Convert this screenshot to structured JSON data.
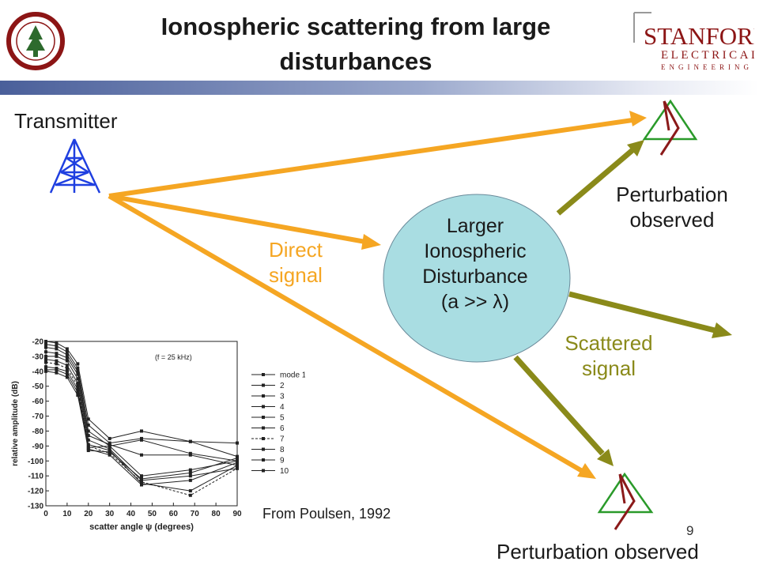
{
  "title": {
    "line1": "Ionospheric scattering from large",
    "line2": "disturbances"
  },
  "logo_right": {
    "word1": "STANFORD",
    "word2": "ELECTRICAL",
    "word3": "ENGINEERING"
  },
  "labels": {
    "transmitter": "Transmitter",
    "perturbation_top_line1": "Perturbation",
    "perturbation_top_line2": "observed",
    "perturbation_bottom": "Perturbation observed",
    "direct_line1": "Direct",
    "direct_line2": "signal",
    "scattered_line1": "Scattered",
    "scattered_line2": "signal",
    "disturbance_line1": "Larger",
    "disturbance_line2": "Ionospheric",
    "disturbance_line3": "Disturbance",
    "disturbance_line4": "(a >> λ)",
    "credit": "From Poulsen, 1992",
    "page_number": "9"
  },
  "colors": {
    "direct_arrow": "#f5a623",
    "scattered_arrow": "#8a8a1a",
    "disturbance_fill": "#a9dde2",
    "transmitter": "#1f3fe0",
    "receiver_triangle": "#2a9a2a",
    "receiver_mast": "#8b1a1a"
  },
  "icons": {
    "transmitter": "antenna-tower-icon",
    "receiver": "receiver-antenna-icon"
  },
  "chart_data": {
    "type": "line",
    "title": "",
    "annotation": "(f = 25 kHz)",
    "xlabel": "scatter angle ψ (degrees)",
    "ylabel": "relative amplitude (dB)",
    "xlim": [
      0,
      90
    ],
    "ylim": [
      -130,
      -20
    ],
    "x_ticks": [
      0,
      10,
      20,
      30,
      40,
      50,
      60,
      70,
      80,
      90
    ],
    "y_ticks": [
      -20,
      -30,
      -40,
      -50,
      -60,
      -70,
      -80,
      -90,
      -100,
      -110,
      -120,
      -130
    ],
    "x": [
      0,
      5,
      10,
      15,
      20,
      30,
      45,
      68,
      90
    ],
    "series": [
      {
        "name": "mode 1",
        "values": [
          -20,
          -21,
          -25,
          -35,
          -72,
          -85,
          -80,
          -87,
          -88
        ]
      },
      {
        "name": "2",
        "values": [
          -22,
          -23,
          -27,
          -38,
          -76,
          -88,
          -85,
          -87,
          -97
        ]
      },
      {
        "name": "3",
        "values": [
          -24,
          -25,
          -29,
          -40,
          -80,
          -90,
          -86,
          -95,
          -100
        ]
      },
      {
        "name": "4",
        "values": [
          -27,
          -28,
          -31,
          -42,
          -83,
          -89,
          -96,
          -96,
          -103
        ]
      },
      {
        "name": "5",
        "values": [
          -30,
          -30,
          -33,
          -45,
          -86,
          -92,
          -113,
          -110,
          -105
        ]
      },
      {
        "name": "6",
        "values": [
          -32,
          -33,
          -36,
          -48,
          -89,
          -93,
          -115,
          -120,
          -103
        ]
      },
      {
        "name": "7",
        "values": [
          -34,
          -35,
          -38,
          -50,
          -90,
          -95,
          -114,
          -123,
          -105
        ]
      },
      {
        "name": "8",
        "values": [
          -37,
          -38,
          -40,
          -52,
          -92,
          -96,
          -116,
          -113,
          -101
        ]
      },
      {
        "name": "9",
        "values": [
          -39,
          -39,
          -42,
          -54,
          -93,
          -94,
          -112,
          -108,
          -98
        ]
      },
      {
        "name": "10",
        "values": [
          -40,
          -41,
          -44,
          -56,
          -91,
          -90,
          -110,
          -106,
          -100
        ]
      }
    ],
    "legend": [
      "mode 1",
      "2",
      "3",
      "4",
      "5",
      "6",
      "7",
      "8",
      "9",
      "10"
    ],
    "legend_position": "right",
    "grid": false
  }
}
